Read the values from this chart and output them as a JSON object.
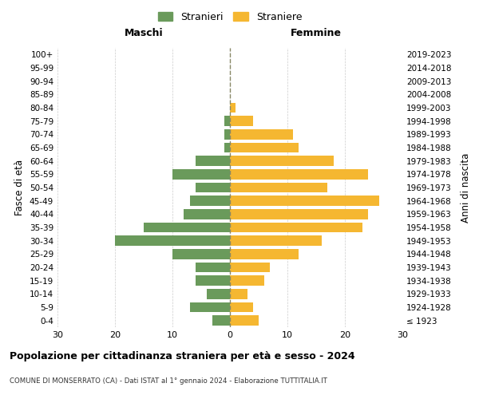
{
  "age_groups": [
    "100+",
    "95-99",
    "90-94",
    "85-89",
    "80-84",
    "75-79",
    "70-74",
    "65-69",
    "60-64",
    "55-59",
    "50-54",
    "45-49",
    "40-44",
    "35-39",
    "30-34",
    "25-29",
    "20-24",
    "15-19",
    "10-14",
    "5-9",
    "0-4"
  ],
  "birth_years": [
    "≤ 1923",
    "1924-1928",
    "1929-1933",
    "1934-1938",
    "1939-1943",
    "1944-1948",
    "1949-1953",
    "1954-1958",
    "1959-1963",
    "1964-1968",
    "1969-1973",
    "1974-1978",
    "1979-1983",
    "1984-1988",
    "1989-1993",
    "1994-1998",
    "1999-2003",
    "2004-2008",
    "2009-2013",
    "2014-2018",
    "2019-2023"
  ],
  "maschi": [
    0,
    0,
    0,
    0,
    0,
    1,
    1,
    1,
    6,
    10,
    6,
    7,
    8,
    15,
    20,
    10,
    6,
    6,
    4,
    7,
    3
  ],
  "femmine": [
    0,
    0,
    0,
    0,
    1,
    4,
    11,
    12,
    18,
    24,
    17,
    26,
    24,
    23,
    16,
    12,
    7,
    6,
    3,
    4,
    5
  ],
  "maschi_color": "#6a9a5b",
  "femmine_color": "#f5b731",
  "background_color": "#ffffff",
  "grid_color": "#cccccc",
  "title": "Popolazione per cittadinanza straniera per età e sesso - 2024",
  "subtitle": "COMUNE DI MONSERRATO (CA) - Dati ISTAT al 1° gennaio 2024 - Elaborazione TUTTITALIA.IT",
  "xlabel_left": "Maschi",
  "xlabel_right": "Femmine",
  "ylabel_left": "Fasce di età",
  "ylabel_right": "Anni di nascita",
  "legend_maschi": "Stranieri",
  "legend_femmine": "Straniere",
  "xlim": 30,
  "dashed_line_color": "#888866"
}
